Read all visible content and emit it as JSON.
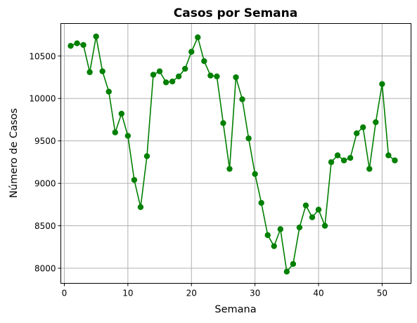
{
  "chart_data": {
    "type": "line",
    "title": "Casos por Semana",
    "xlabel": "Semana",
    "ylabel": "Número de Casos",
    "xlim": [
      -0.55,
      54.55
    ],
    "ylim": [
      7822,
      10883
    ],
    "xticks": [
      0,
      10,
      20,
      30,
      40,
      50
    ],
    "yticks": [
      8000,
      8500,
      9000,
      9500,
      10000,
      10500
    ],
    "grid": true,
    "line_color": "#008000",
    "marker": "circle",
    "x": [
      1,
      2,
      3,
      4,
      5,
      6,
      7,
      8,
      9,
      10,
      11,
      12,
      13,
      14,
      15,
      16,
      17,
      18,
      19,
      20,
      21,
      22,
      23,
      24,
      25,
      26,
      27,
      28,
      29,
      30,
      31,
      32,
      33,
      34,
      35,
      36,
      37,
      38,
      39,
      40,
      41,
      42,
      43,
      44,
      45,
      46,
      47,
      48,
      49,
      50,
      51,
      52
    ],
    "y": [
      10620,
      10650,
      10630,
      10310,
      10730,
      10320,
      10080,
      9600,
      9820,
      9560,
      9040,
      8720,
      9320,
      10280,
      10320,
      10190,
      10200,
      10260,
      10350,
      10550,
      10720,
      10440,
      10270,
      10260,
      9710,
      9170,
      10250,
      9990,
      9530,
      9110,
      8770,
      8390,
      8260,
      8460,
      7960,
      8050,
      8480,
      8740,
      8600,
      8690,
      8500,
      9250,
      9330,
      9270,
      9300,
      9590,
      9660,
      9170,
      9720,
      10170,
      9330,
      9270
    ]
  }
}
